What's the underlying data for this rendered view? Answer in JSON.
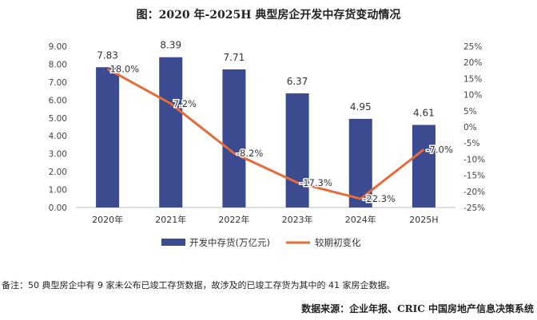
{
  "chart_data": {
    "type": "bar",
    "title": "图：2020 年-2025H 典型房企开发中存货变动情况",
    "categories": [
      "2020年",
      "2021年",
      "2022年",
      "2023年",
      "2024年",
      "2025H"
    ],
    "series": [
      {
        "name": "开发中存货(万亿元)",
        "type": "bar",
        "axis": "left",
        "color": "#3C4A8F",
        "values": [
          7.83,
          8.39,
          7.71,
          6.37,
          4.95,
          4.61
        ],
        "labels": [
          "7.83",
          "8.39",
          "7.71",
          "6.37",
          "4.95",
          "4.61"
        ]
      },
      {
        "name": "较期初变化",
        "type": "line",
        "axis": "right",
        "color": "#E36C3A",
        "values": [
          18.0,
          7.2,
          -8.2,
          -17.3,
          -22.3,
          -7.0
        ],
        "labels": [
          "18.0%",
          "7.2%",
          "-8.2%",
          "-17.3%",
          "-22.3%",
          "-7.0%"
        ]
      }
    ],
    "y_left": {
      "ylim": [
        0,
        9
      ],
      "ticks": [
        "0.00",
        "1.00",
        "2.00",
        "3.00",
        "4.00",
        "5.00",
        "6.00",
        "7.00",
        "8.00",
        "9.00"
      ]
    },
    "y_right": {
      "ylim": [
        -25,
        25
      ],
      "ticks": [
        "-25%",
        "-20%",
        "-15%",
        "-10%",
        "-5%",
        "0%",
        "5%",
        "10%",
        "15%",
        "20%",
        "25%"
      ]
    },
    "grid": false,
    "legend_position": "bottom"
  },
  "footnote": "备注：50 典型房企中有 9 家未公布已竣工存货数据，故涉及的已竣工存货为其中的 41 家房企数据。",
  "source": "数据来源：企业年报、CRIC 中国房地产信息决策系统"
}
